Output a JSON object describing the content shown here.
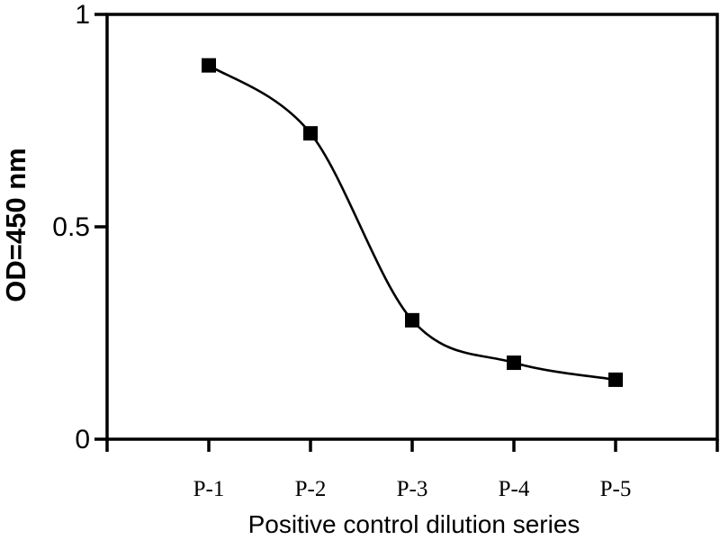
{
  "chart_data": {
    "type": "line",
    "title": "",
    "categories": [
      "P-1",
      "P-2",
      "P-3",
      "P-4",
      "P-5"
    ],
    "values": [
      0.88,
      0.72,
      0.28,
      0.18,
      0.14
    ],
    "xlabel": "Positive control dilution series",
    "ylabel": "OD=450 nm",
    "ylim": [
      0,
      1
    ],
    "yticks": {
      "values": [
        0,
        0.5,
        1
      ],
      "labels": [
        "0",
        "0.5",
        "1"
      ]
    },
    "marker": "filled-square",
    "line_style": "smooth-spline",
    "line_color": "#000000",
    "marker_color": "#000000",
    "axis_color": "#000000",
    "background": "#ffffff",
    "grid": false,
    "legend": "none"
  }
}
